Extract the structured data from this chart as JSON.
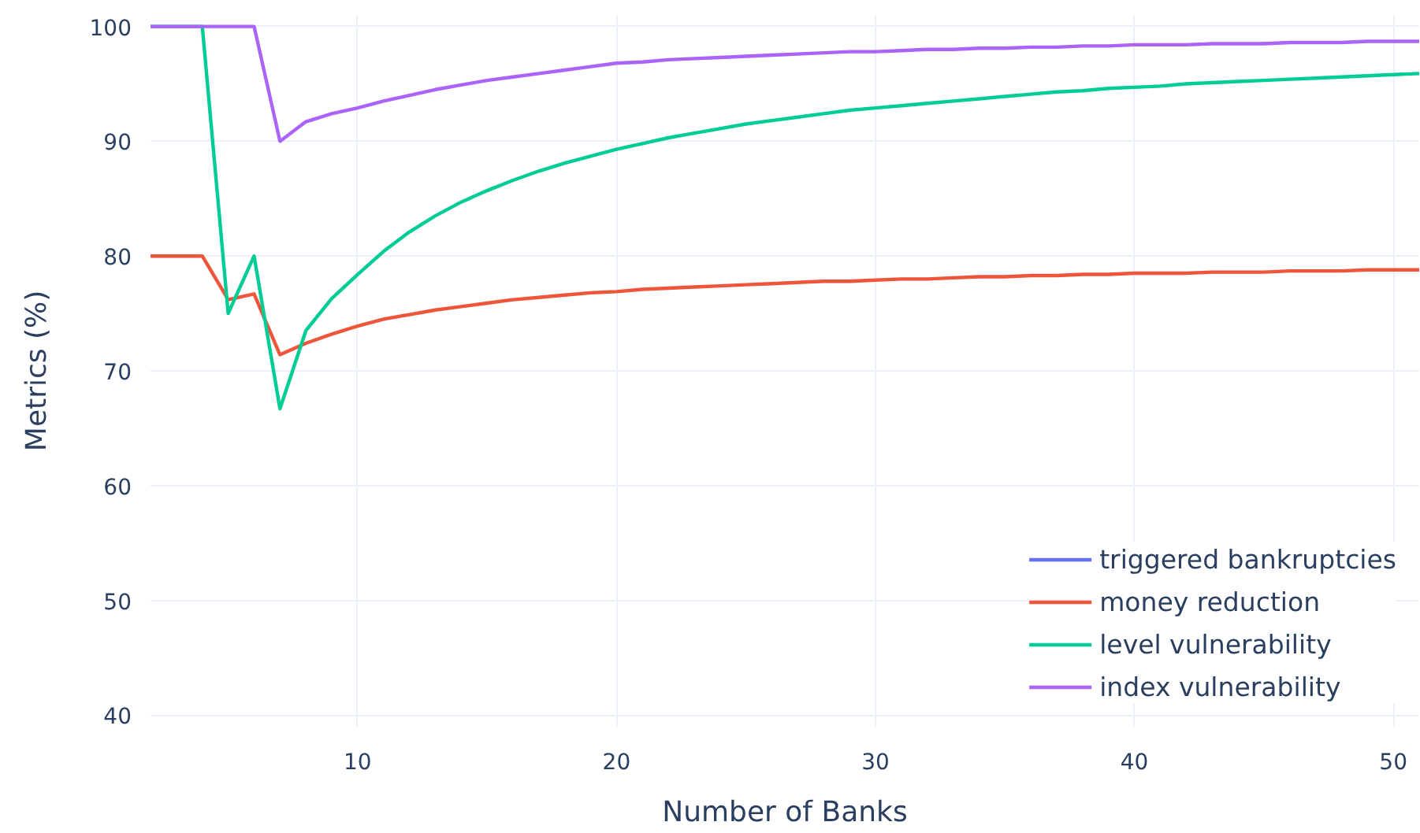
{
  "chart_data": {
    "type": "line",
    "xlabel": "Number of Banks",
    "ylabel": "Metrics (%)",
    "x": [
      2,
      3,
      4,
      5,
      6,
      7,
      8,
      9,
      10,
      11,
      12,
      13,
      14,
      15,
      16,
      17,
      18,
      19,
      20,
      21,
      22,
      23,
      24,
      25,
      26,
      27,
      28,
      29,
      30,
      31,
      32,
      33,
      34,
      35,
      36,
      37,
      38,
      39,
      40,
      41,
      42,
      43,
      44,
      45,
      46,
      47,
      48,
      49,
      50,
      51
    ],
    "series": [
      {
        "name": "triggered bankruptcies",
        "color": "#636efa",
        "values": [
          null,
          null,
          null,
          null,
          null,
          null,
          null,
          null,
          null,
          null,
          null,
          null,
          null,
          null,
          null,
          null,
          null,
          null,
          null,
          null,
          null,
          null,
          null,
          null,
          null,
          null,
          null,
          null,
          null,
          null,
          null,
          null,
          null,
          null,
          null,
          null,
          null,
          null,
          null,
          null,
          null,
          null,
          null,
          null,
          null,
          null,
          null,
          null,
          null,
          null
        ]
      },
      {
        "name": "money reduction",
        "color": "#ef553b",
        "values": [
          80,
          80,
          80,
          76.2,
          76.7,
          71.4,
          72.4,
          73.2,
          73.9,
          74.5,
          74.9,
          75.3,
          75.6,
          75.9,
          76.2,
          76.4,
          76.6,
          76.8,
          76.9,
          77.1,
          77.2,
          77.3,
          77.4,
          77.5,
          77.6,
          77.7,
          77.8,
          77.8,
          77.9,
          78.0,
          78.0,
          78.1,
          78.2,
          78.2,
          78.3,
          78.3,
          78.4,
          78.4,
          78.5,
          78.5,
          78.5,
          78.6,
          78.6,
          78.6,
          78.7,
          78.7,
          78.7,
          78.8,
          78.8,
          78.8
        ]
      },
      {
        "name": "level vulnerability",
        "color": "#00cc96",
        "values": [
          100,
          100,
          100,
          75,
          80,
          66.7,
          73.5,
          76.3,
          78.4,
          80.4,
          82.1,
          83.5,
          84.7,
          85.7,
          86.6,
          87.4,
          88.1,
          88.7,
          89.3,
          89.8,
          90.3,
          90.7,
          91.1,
          91.5,
          91.8,
          92.1,
          92.4,
          92.7,
          92.9,
          93.1,
          93.3,
          93.5,
          93.7,
          93.9,
          94.1,
          94.3,
          94.4,
          94.6,
          94.7,
          94.8,
          95.0,
          95.1,
          95.2,
          95.3,
          95.4,
          95.5,
          95.6,
          95.7,
          95.8,
          95.9
        ]
      },
      {
        "name": "index vulnerability",
        "color": "#ab63fa",
        "values": [
          100,
          100,
          100,
          100,
          100,
          90,
          91.7,
          92.4,
          92.9,
          93.5,
          94.0,
          94.5,
          94.9,
          95.3,
          95.6,
          95.9,
          96.2,
          96.5,
          96.8,
          96.9,
          97.1,
          97.2,
          97.3,
          97.4,
          97.5,
          97.6,
          97.7,
          97.8,
          97.8,
          97.9,
          98.0,
          98.0,
          98.1,
          98.1,
          98.2,
          98.2,
          98.3,
          98.3,
          98.4,
          98.4,
          98.4,
          98.5,
          98.5,
          98.5,
          98.6,
          98.6,
          98.6,
          98.7,
          98.7,
          98.7
        ]
      }
    ],
    "xlim": [
      2,
      51
    ],
    "ylim": [
      39,
      101
    ],
    "xticks": [
      10,
      20,
      30,
      40,
      50
    ],
    "yticks": [
      40,
      50,
      60,
      70,
      80,
      90,
      100
    ],
    "grid": true,
    "legend": "bottom right",
    "line_style": "solid"
  }
}
